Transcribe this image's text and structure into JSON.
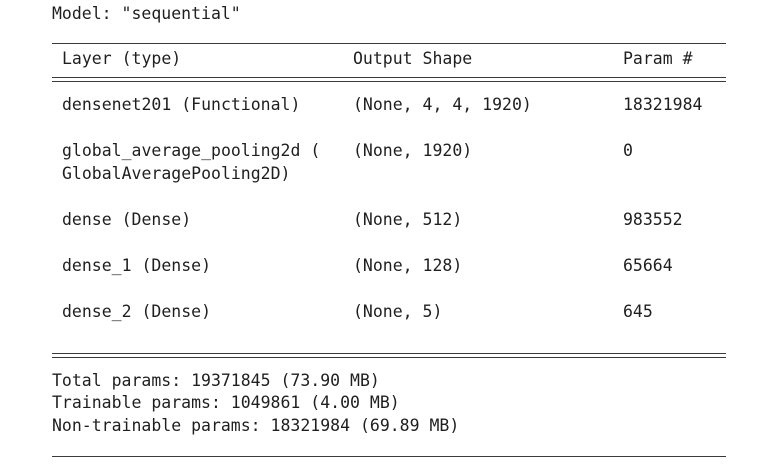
{
  "model_line": "Model: \"sequential\"",
  "headers": {
    "layer": "Layer (type)",
    "output_shape": "Output Shape",
    "params": "Param #"
  },
  "rows": [
    {
      "layer_line1": "densenet201 (Functional)",
      "layer_line2": "",
      "output_shape": "(None, 4, 4, 1920)",
      "params": "18321984"
    },
    {
      "layer_line1": "global_average_pooling2d (",
      "layer_line2": "GlobalAveragePooling2D)",
      "output_shape": "(None, 1920)",
      "params": "0"
    },
    {
      "layer_line1": "dense (Dense)",
      "layer_line2": "",
      "output_shape": "(None, 512)",
      "params": "983552"
    },
    {
      "layer_line1": "dense_1 (Dense)",
      "layer_line2": "",
      "output_shape": "(None, 128)",
      "params": "65664"
    },
    {
      "layer_line1": "dense_2 (Dense)",
      "layer_line2": "",
      "output_shape": "(None, 5)",
      "params": "645"
    }
  ],
  "summary": {
    "total": "Total params: 19371845 (73.90 MB)",
    "trainable": "Trainable params: 1049861 (4.00 MB)",
    "non_trainable": "Non-trainable params: 18321984 (69.89 MB)"
  }
}
